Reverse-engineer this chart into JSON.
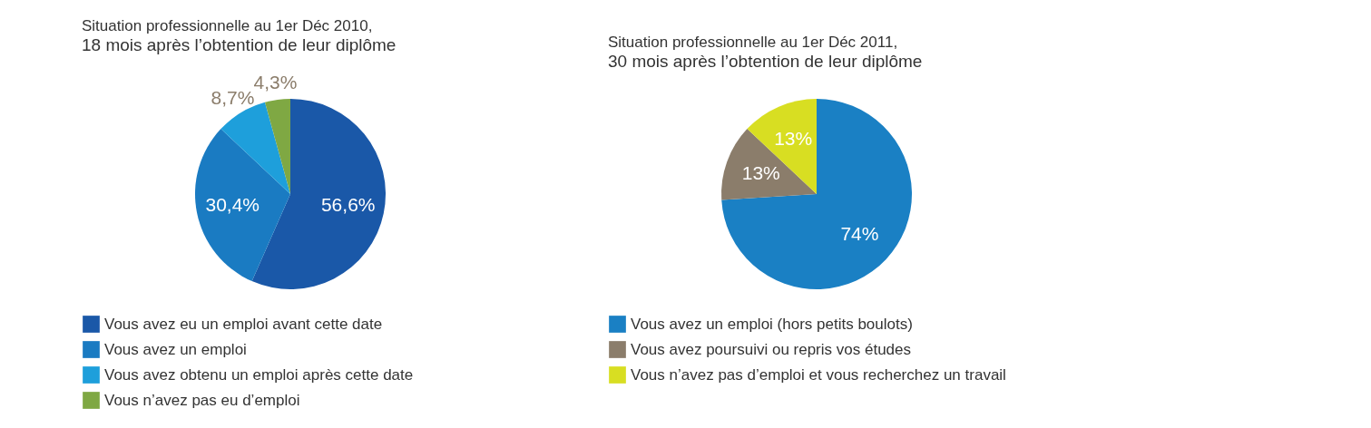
{
  "chart_data": [
    {
      "type": "pie",
      "title": "Situation professionnelle au 1er Déc 2010,",
      "subtitle": "18 mois après l’obtention de leur diplôme",
      "categories": [
        "Vous avez eu un emploi avant cette date",
        "Vous avez un emploi",
        "Vous avez obtenu un emploi après cette date",
        "Vous n’avez pas eu d’emploi"
      ],
      "values": [
        56.6,
        30.4,
        8.7,
        4.3
      ],
      "value_labels": [
        "56,6%",
        "30,4%",
        "8,7%",
        "4,3%"
      ],
      "colors": [
        "#1a58a8",
        "#1a7bc2",
        "#1e9fdb",
        "#7fa843"
      ],
      "legend": "bottom"
    },
    {
      "type": "pie",
      "title": "Situation professionnelle au 1er Déc 2011,",
      "subtitle": "30 mois après l’obtention de leur diplôme",
      "categories": [
        "Vous avez un emploi (hors petits boulots)",
        "Vous avez poursuivi ou repris vos études",
        "Vous n’avez pas d’emploi et vous recherchez un travail"
      ],
      "values": [
        74,
        13,
        13
      ],
      "value_labels": [
        "74%",
        "13%",
        "13%"
      ],
      "colors": [
        "#1a80c4",
        "#8b7d6b",
        "#d8de22"
      ],
      "legend": "bottom"
    }
  ]
}
